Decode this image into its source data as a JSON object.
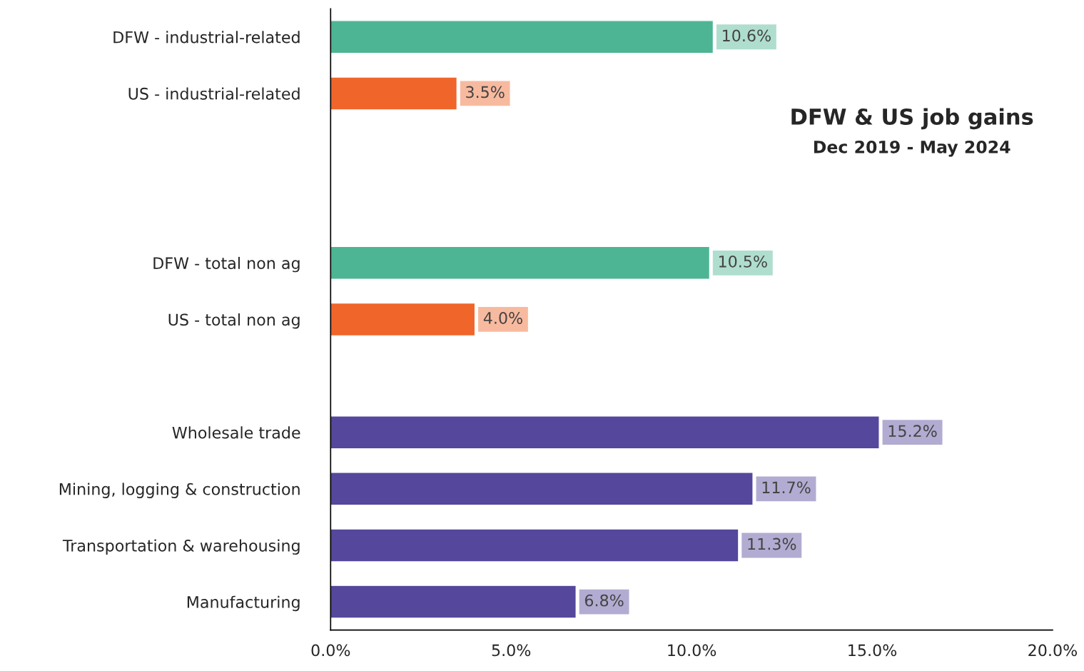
{
  "chart_data": {
    "type": "bar",
    "orientation": "horizontal",
    "title": "DFW & US job gains",
    "subtitle": "Dec 2019 - May 2024",
    "categories": [
      "DFW - industrial-related",
      "US - industrial-related",
      null,
      null,
      "DFW - total non ag",
      "US - total non ag",
      null,
      "Wholesale trade",
      "Mining, logging & construction",
      "Transportation & warehousing",
      "Manufacturing"
    ],
    "values": [
      10.6,
      3.5,
      null,
      null,
      10.5,
      4.0,
      null,
      15.2,
      11.7,
      11.3,
      6.8
    ],
    "colors": [
      "#4db594",
      "#f0652a",
      null,
      null,
      "#4db594",
      "#f0652a",
      null,
      "#54479c",
      "#54479c",
      "#54479c",
      "#54479c"
    ],
    "value_labels": [
      "10.6%",
      "3.5%",
      null,
      null,
      "10.5%",
      "4.0%",
      null,
      "15.2%",
      "11.7%",
      "11.3%",
      "6.8%"
    ],
    "xlim": [
      0,
      20
    ],
    "xticks": [
      {
        "value": 0,
        "label": "0.0%"
      },
      {
        "value": 5,
        "label": "5.0%"
      },
      {
        "value": 10,
        "label": "10.0%"
      },
      {
        "value": 15,
        "label": "15.0%"
      },
      {
        "value": 20,
        "label": "20.0%"
      }
    ],
    "grid": false,
    "legend": false
  }
}
